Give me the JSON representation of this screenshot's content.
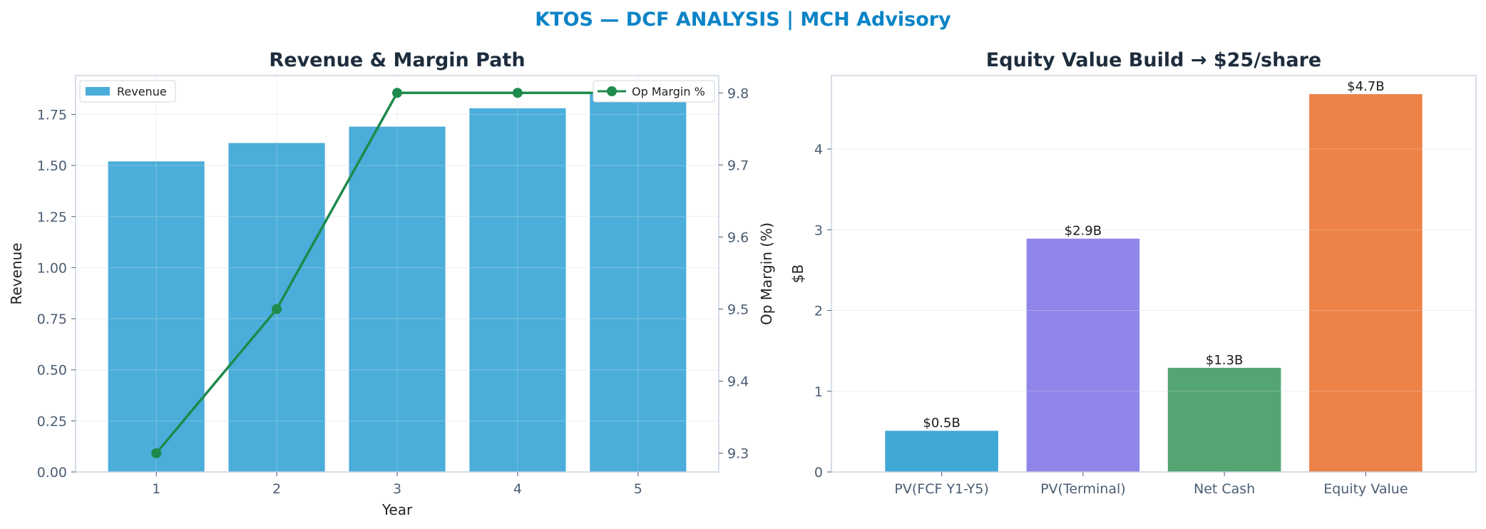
{
  "suptitle": "KTOS — DCF ANALYSIS | MCH Advisory",
  "colors": {
    "title": "#0b84c6",
    "revenue_bar": "#4badd9",
    "op_margin_line": "#1e8a4c",
    "ev_bars": [
      "#36a3d4",
      "#8a7fe9",
      "#4ba06d",
      "#eb7b3e"
    ]
  },
  "chart_data": [
    {
      "type": "bar",
      "title": "Revenue & Margin Path",
      "xlabel": "Year",
      "ylabel": "Revenue",
      "y2label": "Op Margin (%)",
      "categories": [
        "1",
        "2",
        "3",
        "4",
        "5"
      ],
      "ylim": [
        0,
        1.94
      ],
      "yticks": [
        "0.00",
        "0.25",
        "0.50",
        "0.75",
        "1.00",
        "1.25",
        "1.50",
        "1.75"
      ],
      "y2lim": [
        9.274,
        9.824
      ],
      "y2ticks": [
        "9.3",
        "9.4",
        "9.5",
        "9.6",
        "9.7",
        "9.8"
      ],
      "grid": true,
      "series": [
        {
          "name": "Revenue",
          "type": "bar",
          "axis": "left",
          "values": [
            1.52,
            1.61,
            1.69,
            1.78,
            1.86
          ]
        },
        {
          "name": "Op Margin %",
          "type": "line",
          "axis": "right",
          "values": [
            9.3,
            9.5,
            9.8,
            9.8,
            9.8
          ]
        }
      ],
      "legend": [
        {
          "label": "Revenue",
          "placement": "top-left"
        },
        {
          "label": "Op Margin %",
          "placement": "top-right"
        }
      ]
    },
    {
      "type": "bar",
      "title": "Equity Value Build → $25/share",
      "xlabel": "",
      "ylabel": "$B",
      "categories": [
        "PV(FCF Y1-Y5)",
        "PV(Terminal)",
        "Net Cash",
        "Equity Value"
      ],
      "values": [
        0.51,
        2.89,
        1.29,
        4.68
      ],
      "data_labels": [
        "$0.5B",
        "$2.9B",
        "$1.3B",
        "$4.7B"
      ],
      "ylim": [
        0,
        4.91
      ],
      "yticks": [
        "0",
        "1",
        "2",
        "3",
        "4"
      ],
      "grid": true
    }
  ]
}
